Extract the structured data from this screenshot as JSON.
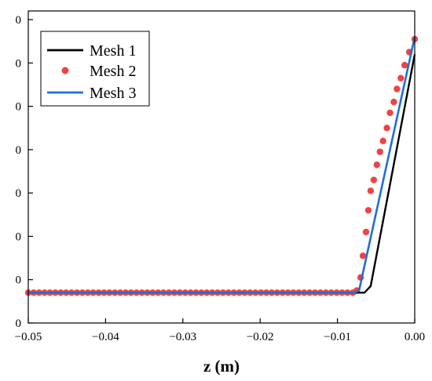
{
  "chart_data": {
    "type": "line",
    "title": "",
    "xlabel": "z (m)",
    "ylabel": "",
    "xlim": [
      -0.05,
      0.0
    ],
    "ylim": [
      0,
      7.2
    ],
    "x_ticks": [
      -0.05,
      -0.04,
      -0.03,
      -0.02,
      -0.01,
      0.0
    ],
    "x_tick_labels": [
      "-0.05",
      "-0.04",
      "-0.03",
      "-0.02",
      "-0.01",
      "0.00"
    ],
    "y_ticks": [
      0,
      1,
      2,
      3,
      4,
      5,
      6,
      7
    ],
    "y_tick_labels": [
      "0",
      "0",
      "0",
      "0",
      "0",
      "0",
      "0",
      "0"
    ],
    "grid": false,
    "legend_position": "top-left",
    "series": [
      {
        "name": "Mesh 1",
        "style": "line",
        "color": "#000000",
        "points": [
          [
            -0.05,
            0.7
          ],
          [
            -0.0065,
            0.7
          ],
          [
            -0.0057,
            0.85
          ],
          [
            0.0,
            6.2
          ]
        ]
      },
      {
        "name": "Mesh 2",
        "style": "markers",
        "color": "#ee4444",
        "points": [
          [
            -0.05,
            0.7
          ],
          [
            -0.0493,
            0.7
          ],
          [
            -0.0486,
            0.7
          ],
          [
            -0.0479,
            0.7
          ],
          [
            -0.0472,
            0.7
          ],
          [
            -0.0465,
            0.7
          ],
          [
            -0.0458,
            0.7
          ],
          [
            -0.0451,
            0.7
          ],
          [
            -0.0444,
            0.7
          ],
          [
            -0.0437,
            0.7
          ],
          [
            -0.043,
            0.7
          ],
          [
            -0.0423,
            0.7
          ],
          [
            -0.0416,
            0.7
          ],
          [
            -0.0409,
            0.7
          ],
          [
            -0.0402,
            0.7
          ],
          [
            -0.0395,
            0.7
          ],
          [
            -0.0388,
            0.7
          ],
          [
            -0.0381,
            0.7
          ],
          [
            -0.0374,
            0.7
          ],
          [
            -0.0367,
            0.7
          ],
          [
            -0.036,
            0.7
          ],
          [
            -0.0353,
            0.7
          ],
          [
            -0.0346,
            0.7
          ],
          [
            -0.0339,
            0.7
          ],
          [
            -0.0332,
            0.7
          ],
          [
            -0.0325,
            0.7
          ],
          [
            -0.0318,
            0.7
          ],
          [
            -0.0311,
            0.7
          ],
          [
            -0.0304,
            0.7
          ],
          [
            -0.0297,
            0.7
          ],
          [
            -0.029,
            0.7
          ],
          [
            -0.0283,
            0.7
          ],
          [
            -0.0276,
            0.7
          ],
          [
            -0.0269,
            0.7
          ],
          [
            -0.0262,
            0.7
          ],
          [
            -0.0255,
            0.7
          ],
          [
            -0.0248,
            0.7
          ],
          [
            -0.0241,
            0.7
          ],
          [
            -0.0234,
            0.7
          ],
          [
            -0.0227,
            0.7
          ],
          [
            -0.022,
            0.7
          ],
          [
            -0.0213,
            0.7
          ],
          [
            -0.0206,
            0.7
          ],
          [
            -0.0199,
            0.7
          ],
          [
            -0.0192,
            0.7
          ],
          [
            -0.0185,
            0.7
          ],
          [
            -0.0178,
            0.7
          ],
          [
            -0.0171,
            0.7
          ],
          [
            -0.0164,
            0.7
          ],
          [
            -0.0157,
            0.7
          ],
          [
            -0.015,
            0.7
          ],
          [
            -0.0143,
            0.7
          ],
          [
            -0.0136,
            0.7
          ],
          [
            -0.0129,
            0.7
          ],
          [
            -0.0122,
            0.7
          ],
          [
            -0.0115,
            0.7
          ],
          [
            -0.0108,
            0.7
          ],
          [
            -0.0101,
            0.7
          ],
          [
            -0.0094,
            0.7
          ],
          [
            -0.0087,
            0.7
          ],
          [
            -0.008,
            0.7
          ],
          [
            -0.0075,
            0.75
          ],
          [
            -0.007,
            1.05
          ],
          [
            -0.0067,
            1.55
          ],
          [
            -0.0063,
            2.1
          ],
          [
            -0.006,
            2.6
          ],
          [
            -0.0057,
            3.05
          ],
          [
            -0.0053,
            3.3
          ],
          [
            -0.0049,
            3.65
          ],
          [
            -0.0045,
            3.95
          ],
          [
            -0.0041,
            4.2
          ],
          [
            -0.0036,
            4.5
          ],
          [
            -0.0032,
            4.85
          ],
          [
            -0.0027,
            5.1
          ],
          [
            -0.0023,
            5.4
          ],
          [
            -0.0018,
            5.65
          ],
          [
            -0.0013,
            5.95
          ],
          [
            -0.0007,
            6.25
          ],
          [
            0.0,
            6.55
          ]
        ]
      },
      {
        "name": "Mesh 3",
        "style": "line",
        "color": "#1f6fd6",
        "points": [
          [
            -0.05,
            0.7
          ],
          [
            -0.0078,
            0.7
          ],
          [
            -0.0072,
            0.75
          ],
          [
            0.0,
            6.6
          ]
        ]
      }
    ]
  }
}
